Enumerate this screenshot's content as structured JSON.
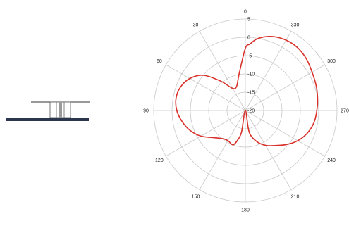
{
  "colors": {
    "trace": "#d9302a",
    "grid": "#c8c8c8",
    "ground_plane": "#2b3550",
    "element_line": "#333333",
    "feed": "#9a9a9a"
  },
  "icon": "antenna-side-view-icon",
  "chart_data": {
    "type": "polar",
    "title": "",
    "angle_direction": "counterclockwise",
    "zero_angle_position": "top",
    "angle_ticks": [
      0,
      30,
      60,
      90,
      120,
      150,
      180,
      210,
      240,
      270,
      300,
      330
    ],
    "angle_tick_labels": [
      "0",
      "30",
      "60",
      "90",
      "120",
      "150",
      "180",
      "210",
      "240",
      "270",
      "300",
      "330"
    ],
    "radial_ticks": [
      5,
      0,
      -5,
      -10,
      -15,
      -20
    ],
    "radial_tick_labels": [
      "5",
      "0",
      "-5",
      "-10",
      "-15",
      "-20"
    ],
    "radial_range": [
      -20,
      5
    ],
    "grid": true,
    "series": [
      {
        "points": [
          [
            0,
            -3
          ],
          [
            10,
            -10
          ],
          [
            20,
            -13
          ],
          [
            30,
            -13
          ],
          [
            40,
            -9.5
          ],
          [
            50,
            -5
          ],
          [
            60,
            -2.5
          ],
          [
            70,
            -1.2
          ],
          [
            80,
            -0.8
          ],
          [
            90,
            -1.3
          ],
          [
            100,
            -2.5
          ],
          [
            110,
            -4
          ],
          [
            120,
            -6
          ],
          [
            130,
            -8.5
          ],
          [
            140,
            -10
          ],
          [
            150,
            -10.5
          ],
          [
            160,
            -10
          ],
          [
            165,
            -11.5
          ],
          [
            170,
            -14
          ],
          [
            180,
            -20
          ],
          [
            190,
            -14
          ],
          [
            200,
            -11
          ],
          [
            210,
            -9
          ],
          [
            220,
            -7.5
          ],
          [
            230,
            -5.5
          ],
          [
            240,
            -3.5
          ],
          [
            250,
            -2
          ],
          [
            260,
            -1
          ],
          [
            270,
            -0.5
          ],
          [
            280,
            0
          ],
          [
            290,
            0.5
          ],
          [
            300,
            1
          ],
          [
            310,
            1.8
          ],
          [
            320,
            2.3
          ],
          [
            330,
            2.2
          ],
          [
            340,
            1.5
          ],
          [
            350,
            0
          ],
          [
            356,
            -1.8
          ]
        ]
      }
    ]
  }
}
